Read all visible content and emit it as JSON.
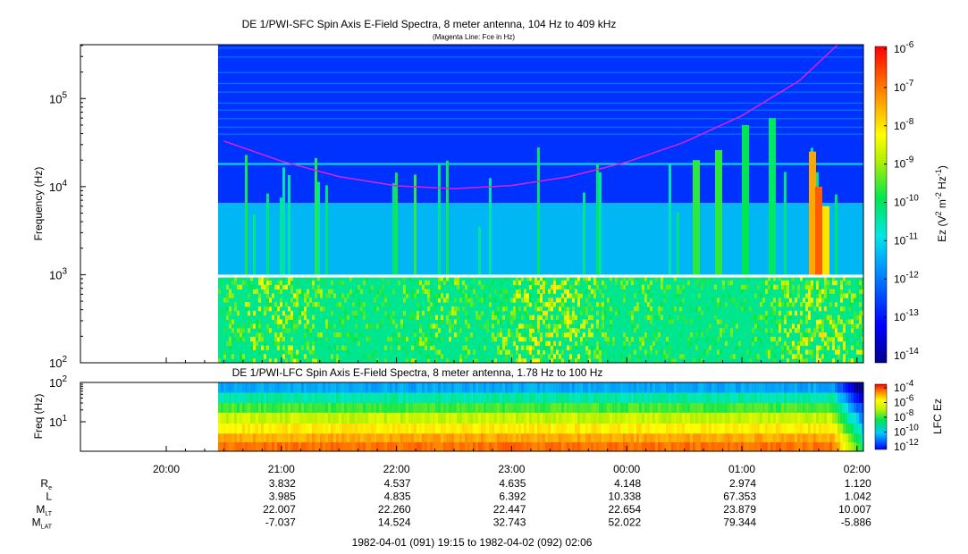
{
  "chart_data": [
    {
      "type": "heatmap",
      "title": "DE 1/PWI-SFC  Spin Axis E-Field Spectra, 8 meter antenna, 104 Hz to 409 kHz",
      "subtitle": "(Magenta Line: Fce in Hz)",
      "ylabel": "Frequency (Hz)",
      "yscale": "log",
      "ylim": [
        100,
        409000
      ],
      "yticks": [
        {
          "value": 100,
          "mant": "10",
          "exp": "2"
        },
        {
          "value": 1000,
          "mant": "10",
          "exp": "3"
        },
        {
          "value": 10000,
          "mant": "10",
          "exp": "4"
        },
        {
          "value": 100000,
          "mant": "10",
          "exp": "5"
        }
      ],
      "colorbar": {
        "label_prefix": "Ez (V",
        "label_sup1": "2",
        "label_mid": " m",
        "label_sup2": "-2",
        "label_mid2": " Hz",
        "label_sup3": "-1",
        "label_suffix": ")",
        "scale": "log",
        "range": [
          1e-14,
          1e-06
        ],
        "ticks": [
          {
            "mant": "10",
            "exp": "-6"
          },
          {
            "mant": "10",
            "exp": "-7"
          },
          {
            "mant": "10",
            "exp": "-8"
          },
          {
            "mant": "10",
            "exp": "-9"
          },
          {
            "mant": "10",
            "exp": "-10"
          },
          {
            "mant": "10",
            "exp": "-11"
          },
          {
            "mant": "10",
            "exp": "-12"
          },
          {
            "mant": "10",
            "exp": "-13"
          },
          {
            "mant": "10",
            "exp": "-14"
          }
        ]
      },
      "fce_line": {
        "color": "#e020e0",
        "t": [
          "20:30",
          "21:00",
          "21:30",
          "22:00",
          "22:30",
          "23:00",
          "23:30",
          "00:00",
          "00:30",
          "01:00",
          "01:30",
          "01:50"
        ],
        "hz": [
          33000,
          19500,
          13000,
          10200,
          9500,
          10300,
          13000,
          19000,
          32000,
          64000,
          160000,
          409000
        ]
      },
      "data_start": "20:27",
      "data_gap_hz": [
        930,
        1000
      ]
    },
    {
      "type": "heatmap",
      "title": "DE 1/PWI-LFC  Spin Axis E-Field Spectra, 8 meter antenna, 1.78 Hz to 100 Hz",
      "ylabel": "Freq (Hz)",
      "yscale": "log",
      "ylim": [
        1.78,
        100
      ],
      "yticks": [
        {
          "value": 10,
          "mant": "10",
          "exp": "1"
        },
        {
          "value": 100,
          "mant": "10",
          "exp": "2"
        }
      ],
      "colorbar": {
        "label": "LFC Ez",
        "scale": "log",
        "range": [
          1e-12,
          0.0001
        ],
        "ticks": [
          {
            "mant": "10",
            "exp": "-4"
          },
          {
            "mant": "10",
            "exp": "-6"
          },
          {
            "mant": "10",
            "exp": "-8"
          },
          {
            "mant": "10",
            "exp": "-10"
          },
          {
            "mant": "10",
            "exp": "-12"
          }
        ]
      },
      "data_start": "20:27"
    }
  ],
  "time_axis": {
    "ticks": [
      "20:00",
      "21:00",
      "22:00",
      "23:00",
      "00:00",
      "01:00",
      "02:00"
    ],
    "range_label": "1982-04-01 (091) 19:15 to 1982-04-02 (092) 02:06"
  },
  "ephemeris": {
    "rows": [
      {
        "base": "R",
        "sub": "e",
        "values": [
          "3.832",
          "4.537",
          "4.635",
          "4.148",
          "2.974",
          "1.120"
        ]
      },
      {
        "base": "L",
        "sub": "",
        "values": [
          "3.985",
          "4.835",
          "6.392",
          "10.338",
          "67.353",
          "1.042"
        ]
      },
      {
        "base": "M",
        "sub": "LT",
        "values": [
          "22.007",
          "22.260",
          "22.447",
          "22.654",
          "23.879",
          "10.007"
        ]
      },
      {
        "base": "M",
        "sub": "LAT",
        "values": [
          "-7.037",
          "14.524",
          "32.743",
          "52.022",
          "79.344",
          "-5.886"
        ]
      }
    ]
  }
}
